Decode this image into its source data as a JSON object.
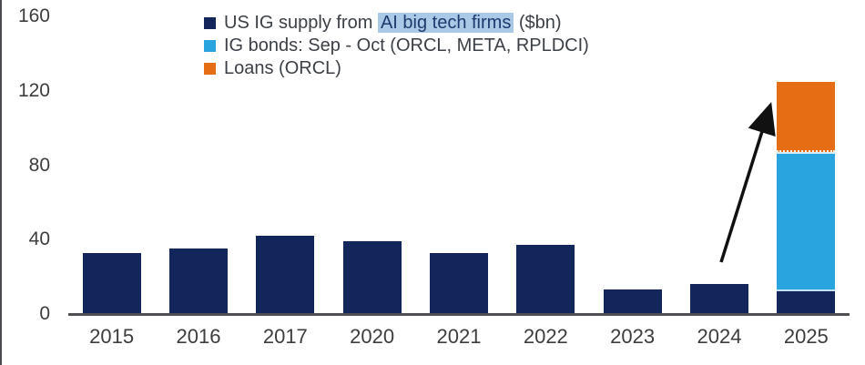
{
  "figure": {
    "background": "#ffffff",
    "axis_color": "#4e5054",
    "text_color": "#3d3d3d"
  },
  "legend": {
    "items": [
      {
        "key": "supply",
        "prefix": "US IG supply from ",
        "highlight": "AI big tech firms",
        "suffix": " ($bn)",
        "swatch_color": "#13265c",
        "highlight_bg": "#a9c9e6",
        "highlight_text_color": "#1d3a6e"
      },
      {
        "key": "ig-bonds",
        "label": "IG bonds: Sep - Oct (ORCL, META, RPLDCI)",
        "swatch_color": "#2aa4de"
      },
      {
        "key": "loans",
        "label": "Loans (ORCL)",
        "swatch_color": "#e56d13"
      }
    ]
  },
  "chart_data": {
    "type": "bar",
    "stacked": true,
    "title": "",
    "xlabel": "",
    "ylabel": "",
    "categories": [
      "2015",
      "2016",
      "2017",
      "2020",
      "2021",
      "2022",
      "2023",
      "2024",
      "2025"
    ],
    "series": [
      {
        "name": "US IG supply from AI big tech firms ($bn)",
        "key": "supply",
        "color": "#13265c",
        "values": [
          33,
          35,
          42,
          39,
          33,
          37,
          13,
          16,
          12
        ]
      },
      {
        "name": "IG bonds: Sep - Oct (ORCL, META, RPLDCI)",
        "key": "ig-bonds",
        "color": "#2aa4de",
        "values": [
          0,
          0,
          0,
          0,
          0,
          0,
          0,
          0,
          75
        ]
      },
      {
        "name": "Loans (ORCL)",
        "key": "loans",
        "color": "#e56d13",
        "values": [
          0,
          0,
          0,
          0,
          0,
          0,
          0,
          0,
          38
        ]
      }
    ],
    "total_2025": 125,
    "ylim": [
      0,
      160
    ],
    "yticks": [
      0,
      40,
      80,
      120,
      160
    ],
    "grid": false,
    "legend_position": "top",
    "annotation": {
      "type": "arrow",
      "color": "#111111",
      "note": "arrow rising from above 2024 bar to top of 2025 stacked bar"
    }
  }
}
